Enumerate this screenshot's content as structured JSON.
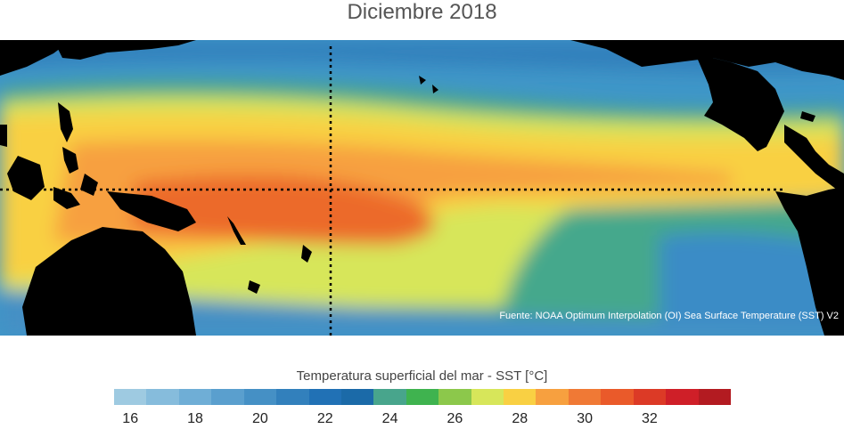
{
  "title": "Diciembre 2018",
  "source_note": "Fuente: NOAA Optimum Interpolation (OI) Sea Surface Temperature (SST) V2",
  "colorbar": {
    "title": "Temperatura superficial del mar - SST  [°C]",
    "colors": [
      "#9ecae1",
      "#86bcdc",
      "#6faed6",
      "#5a9fce",
      "#4590c5",
      "#3280bc",
      "#2171b5",
      "#1b6aa8",
      "#48a58c",
      "#3fb34f",
      "#8cc84b",
      "#d7e65a",
      "#f9d043",
      "#f7a03f",
      "#f07935",
      "#ea5a2a",
      "#dc3a26",
      "#cf1f28",
      "#b31b21"
    ],
    "ticks": [
      "16",
      "18",
      "20",
      "22",
      "24",
      "26",
      "28",
      "30",
      "32"
    ]
  }
}
